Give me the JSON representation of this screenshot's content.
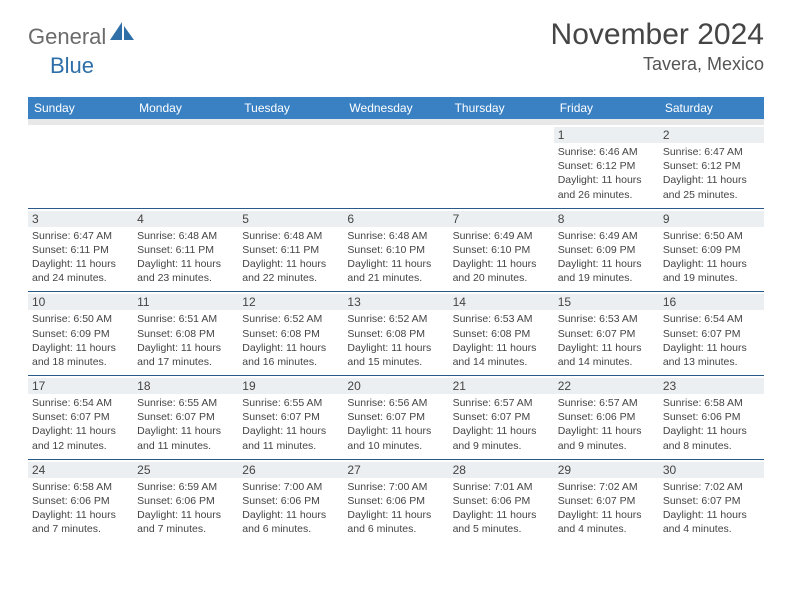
{
  "logo": {
    "text1": "General",
    "text2": "Blue"
  },
  "title": "November 2024",
  "location": "Tavera, Mexico",
  "colors": {
    "header_bg": "#3a81c4",
    "header_text": "#ffffff",
    "daynum_bg": "#eceff1",
    "week_border": "#2a5a8a",
    "logo_gray": "#6b6b6b",
    "logo_blue": "#2f6fa8"
  },
  "weekdays": [
    "Sunday",
    "Monday",
    "Tuesday",
    "Wednesday",
    "Thursday",
    "Friday",
    "Saturday"
  ],
  "weeks": [
    [
      {
        "n": "",
        "empty": true
      },
      {
        "n": "",
        "empty": true
      },
      {
        "n": "",
        "empty": true
      },
      {
        "n": "",
        "empty": true
      },
      {
        "n": "",
        "empty": true
      },
      {
        "n": "1",
        "sunrise": "Sunrise: 6:46 AM",
        "sunset": "Sunset: 6:12 PM",
        "day1": "Daylight: 11 hours",
        "day2": "and 26 minutes."
      },
      {
        "n": "2",
        "sunrise": "Sunrise: 6:47 AM",
        "sunset": "Sunset: 6:12 PM",
        "day1": "Daylight: 11 hours",
        "day2": "and 25 minutes."
      }
    ],
    [
      {
        "n": "3",
        "sunrise": "Sunrise: 6:47 AM",
        "sunset": "Sunset: 6:11 PM",
        "day1": "Daylight: 11 hours",
        "day2": "and 24 minutes."
      },
      {
        "n": "4",
        "sunrise": "Sunrise: 6:48 AM",
        "sunset": "Sunset: 6:11 PM",
        "day1": "Daylight: 11 hours",
        "day2": "and 23 minutes."
      },
      {
        "n": "5",
        "sunrise": "Sunrise: 6:48 AM",
        "sunset": "Sunset: 6:11 PM",
        "day1": "Daylight: 11 hours",
        "day2": "and 22 minutes."
      },
      {
        "n": "6",
        "sunrise": "Sunrise: 6:48 AM",
        "sunset": "Sunset: 6:10 PM",
        "day1": "Daylight: 11 hours",
        "day2": "and 21 minutes."
      },
      {
        "n": "7",
        "sunrise": "Sunrise: 6:49 AM",
        "sunset": "Sunset: 6:10 PM",
        "day1": "Daylight: 11 hours",
        "day2": "and 20 minutes."
      },
      {
        "n": "8",
        "sunrise": "Sunrise: 6:49 AM",
        "sunset": "Sunset: 6:09 PM",
        "day1": "Daylight: 11 hours",
        "day2": "and 19 minutes."
      },
      {
        "n": "9",
        "sunrise": "Sunrise: 6:50 AM",
        "sunset": "Sunset: 6:09 PM",
        "day1": "Daylight: 11 hours",
        "day2": "and 19 minutes."
      }
    ],
    [
      {
        "n": "10",
        "sunrise": "Sunrise: 6:50 AM",
        "sunset": "Sunset: 6:09 PM",
        "day1": "Daylight: 11 hours",
        "day2": "and 18 minutes."
      },
      {
        "n": "11",
        "sunrise": "Sunrise: 6:51 AM",
        "sunset": "Sunset: 6:08 PM",
        "day1": "Daylight: 11 hours",
        "day2": "and 17 minutes."
      },
      {
        "n": "12",
        "sunrise": "Sunrise: 6:52 AM",
        "sunset": "Sunset: 6:08 PM",
        "day1": "Daylight: 11 hours",
        "day2": "and 16 minutes."
      },
      {
        "n": "13",
        "sunrise": "Sunrise: 6:52 AM",
        "sunset": "Sunset: 6:08 PM",
        "day1": "Daylight: 11 hours",
        "day2": "and 15 minutes."
      },
      {
        "n": "14",
        "sunrise": "Sunrise: 6:53 AM",
        "sunset": "Sunset: 6:08 PM",
        "day1": "Daylight: 11 hours",
        "day2": "and 14 minutes."
      },
      {
        "n": "15",
        "sunrise": "Sunrise: 6:53 AM",
        "sunset": "Sunset: 6:07 PM",
        "day1": "Daylight: 11 hours",
        "day2": "and 14 minutes."
      },
      {
        "n": "16",
        "sunrise": "Sunrise: 6:54 AM",
        "sunset": "Sunset: 6:07 PM",
        "day1": "Daylight: 11 hours",
        "day2": "and 13 minutes."
      }
    ],
    [
      {
        "n": "17",
        "sunrise": "Sunrise: 6:54 AM",
        "sunset": "Sunset: 6:07 PM",
        "day1": "Daylight: 11 hours",
        "day2": "and 12 minutes."
      },
      {
        "n": "18",
        "sunrise": "Sunrise: 6:55 AM",
        "sunset": "Sunset: 6:07 PM",
        "day1": "Daylight: 11 hours",
        "day2": "and 11 minutes."
      },
      {
        "n": "19",
        "sunrise": "Sunrise: 6:55 AM",
        "sunset": "Sunset: 6:07 PM",
        "day1": "Daylight: 11 hours",
        "day2": "and 11 minutes."
      },
      {
        "n": "20",
        "sunrise": "Sunrise: 6:56 AM",
        "sunset": "Sunset: 6:07 PM",
        "day1": "Daylight: 11 hours",
        "day2": "and 10 minutes."
      },
      {
        "n": "21",
        "sunrise": "Sunrise: 6:57 AM",
        "sunset": "Sunset: 6:07 PM",
        "day1": "Daylight: 11 hours",
        "day2": "and 9 minutes."
      },
      {
        "n": "22",
        "sunrise": "Sunrise: 6:57 AM",
        "sunset": "Sunset: 6:06 PM",
        "day1": "Daylight: 11 hours",
        "day2": "and 9 minutes."
      },
      {
        "n": "23",
        "sunrise": "Sunrise: 6:58 AM",
        "sunset": "Sunset: 6:06 PM",
        "day1": "Daylight: 11 hours",
        "day2": "and 8 minutes."
      }
    ],
    [
      {
        "n": "24",
        "sunrise": "Sunrise: 6:58 AM",
        "sunset": "Sunset: 6:06 PM",
        "day1": "Daylight: 11 hours",
        "day2": "and 7 minutes."
      },
      {
        "n": "25",
        "sunrise": "Sunrise: 6:59 AM",
        "sunset": "Sunset: 6:06 PM",
        "day1": "Daylight: 11 hours",
        "day2": "and 7 minutes."
      },
      {
        "n": "26",
        "sunrise": "Sunrise: 7:00 AM",
        "sunset": "Sunset: 6:06 PM",
        "day1": "Daylight: 11 hours",
        "day2": "and 6 minutes."
      },
      {
        "n": "27",
        "sunrise": "Sunrise: 7:00 AM",
        "sunset": "Sunset: 6:06 PM",
        "day1": "Daylight: 11 hours",
        "day2": "and 6 minutes."
      },
      {
        "n": "28",
        "sunrise": "Sunrise: 7:01 AM",
        "sunset": "Sunset: 6:06 PM",
        "day1": "Daylight: 11 hours",
        "day2": "and 5 minutes."
      },
      {
        "n": "29",
        "sunrise": "Sunrise: 7:02 AM",
        "sunset": "Sunset: 6:07 PM",
        "day1": "Daylight: 11 hours",
        "day2": "and 4 minutes."
      },
      {
        "n": "30",
        "sunrise": "Sunrise: 7:02 AM",
        "sunset": "Sunset: 6:07 PM",
        "day1": "Daylight: 11 hours",
        "day2": "and 4 minutes."
      }
    ]
  ]
}
